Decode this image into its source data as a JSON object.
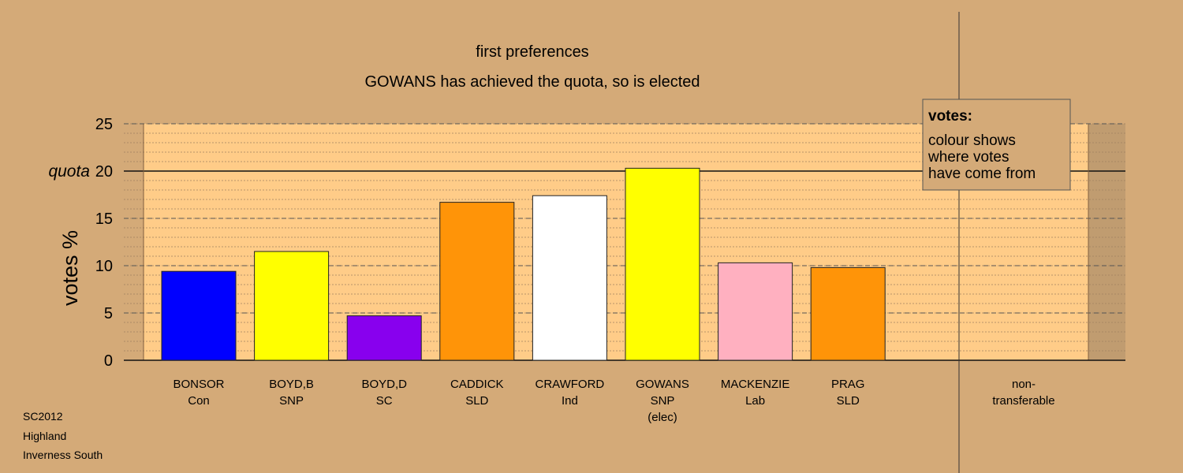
{
  "chart_data": {
    "type": "bar",
    "title": "first preferences",
    "subtitle": "GOWANS has achieved the quota, so is elected",
    "y_label": "votes %",
    "categories": [
      [
        "BONSOR",
        "Con"
      ],
      [
        "BOYD,B",
        "SNP"
      ],
      [
        "BOYD,D",
        "SC"
      ],
      [
        "CADDICK",
        "SLD"
      ],
      [
        "CRAWFORD",
        "Ind"
      ],
      [
        "GOWANS",
        "SNP",
        "(elec)"
      ],
      [
        "MACKENZIE",
        "Lab"
      ],
      [
        "PRAG",
        "SLD"
      ]
    ],
    "values": [
      9.4,
      11.5,
      4.7,
      16.7,
      17.4,
      20.3,
      10.3,
      9.8
    ],
    "colors": [
      "#0000ff",
      "#ffff00",
      "#8800ee",
      "#ff9408",
      "#ffffff",
      "#ffff00",
      "#ffb0c0",
      "#ff9408"
    ],
    "nontransferable_label": [
      "non-",
      "transferable"
    ],
    "quota": 20,
    "quota_label": "quota",
    "ylim": [
      0,
      25
    ],
    "yticks": [
      0,
      5,
      10,
      15,
      20,
      25
    ],
    "grid": true,
    "legend": {
      "title": "votes:",
      "lines": [
        "colour shows",
        "where votes",
        "have come from"
      ]
    },
    "footer": [
      "SC2012",
      "Highland",
      "Inverness South"
    ]
  }
}
